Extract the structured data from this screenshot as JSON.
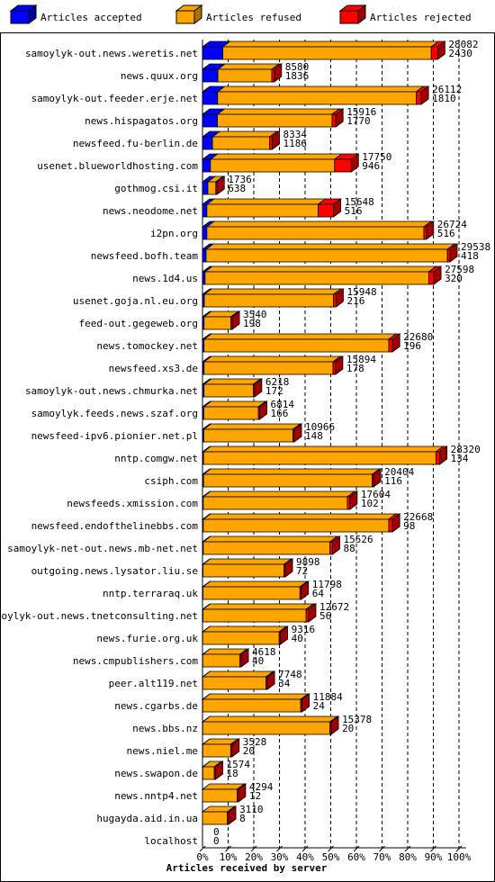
{
  "chart_data": {
    "type": "bar",
    "orientation": "horizontal",
    "stacked": true,
    "x_label": "Articles received by server",
    "categories": [
      "samoylyk-out.news.weretis.net",
      "news.quux.org",
      "samoylyk-out.feeder.erje.net",
      "news.hispagatos.org",
      "newsfeed.fu-berlin.de",
      "usenet.blueworldhosting.com",
      "gothmog.csi.it",
      "news.neodome.net",
      "i2pn.org",
      "newsfeed.bofh.team",
      "news.1d4.us",
      "usenet.goja.nl.eu.org",
      "feed-out.gegeweb.org",
      "news.tomockey.net",
      "newsfeed.xs3.de",
      "samoylyk-out.news.chmurka.net",
      "samoylyk.feeds.news.szaf.org",
      "newsfeed-ipv6.pionier.net.pl",
      "nntp.comgw.net",
      "csiph.com",
      "newsfeeds.xmission.com",
      "newsfeed.endofthelinebbs.com",
      "samoylyk-net-out.news.mb-net.net",
      "outgoing.news.lysator.liu.se",
      "nntp.terraraq.uk",
      "samoylyk-out.news.tnetconsulting.net",
      "news.furie.org.uk",
      "news.cmpublishers.com",
      "peer.alt119.net",
      "news.cgarbs.de",
      "news.bbs.nz",
      "news.niel.me",
      "news.swapon.de",
      "news.nntp4.net",
      "hugayda.aid.in.ua",
      "localhost"
    ],
    "series": [
      {
        "name": "Articles accepted",
        "color": "#0000ff",
        "side": "#0000a0",
        "values": [
          7.9,
          6.0,
          5.9,
          5.8,
          3.9,
          3.1,
          2.1,
          1.7,
          1.7,
          1.4,
          1.0,
          0.7,
          0.6,
          0.6,
          0.6,
          0.6,
          0.5,
          0.5,
          0.4,
          0.4,
          0.3,
          0.3,
          0.3,
          0.2,
          0.2,
          0.2,
          0.1,
          0.1,
          0.1,
          0.1,
          0.1,
          0.1,
          0.1,
          0,
          0,
          0
        ]
      },
      {
        "name": "Articles refused",
        "color": "#ffa500",
        "side": "#b07000",
        "values": [
          81.3,
          21.0,
          77.4,
          44.7,
          22.3,
          48.4,
          3.1,
          43.4,
          84.6,
          94.1,
          87.2,
          50.4,
          10.5,
          72.0,
          50.3,
          19.2,
          21.3,
          34.8,
          90.6,
          65.8,
          56.2,
          72.3,
          49.4,
          31.6,
          37.8,
          40.2,
          29.8,
          14.5,
          24.7,
          38.2,
          49.6,
          10.9,
          4.5,
          13.5,
          9.7,
          0
        ]
      },
      {
        "name": "Articles rejected",
        "color": "#ff0000",
        "side": "#a00000",
        "values": [
          2.5,
          1,
          2,
          1.5,
          1,
          6.5,
          0.5,
          6,
          1,
          1,
          2,
          1,
          0.5,
          1.5,
          1,
          0.5,
          0.5,
          0.5,
          1.5,
          0.5,
          1,
          1.5,
          1,
          0.5,
          0.5,
          1,
          0.5,
          0.5,
          0.5,
          0.5,
          0.5,
          0.5,
          0.5,
          0.5,
          0.5,
          0
        ]
      }
    ],
    "offered": [
      28082,
      8580,
      26112,
      15916,
      8334,
      17750,
      1736,
      15648,
      26724,
      29538,
      27598,
      15948,
      3540,
      22680,
      15894,
      6218,
      6814,
      10966,
      28320,
      20404,
      17604,
      22668,
      15526,
      9898,
      11798,
      12672,
      9316,
      4618,
      7748,
      11884,
      15378,
      3528,
      1574,
      4294,
      3110,
      0
    ],
    "accepted": [
      2430,
      1836,
      1810,
      1770,
      1186,
      946,
      638,
      516,
      516,
      418,
      320,
      216,
      198,
      196,
      178,
      172,
      166,
      148,
      134,
      116,
      102,
      98,
      88,
      72,
      64,
      56,
      40,
      40,
      34,
      24,
      20,
      20,
      18,
      12,
      8,
      0
    ],
    "xlim": [
      0,
      100
    ],
    "xticks": [
      {
        "value": 0,
        "label": "0%"
      },
      {
        "value": 10,
        "label": "10%"
      },
      {
        "value": 20,
        "label": "20%"
      },
      {
        "value": 30,
        "label": "30%"
      },
      {
        "value": 40,
        "label": "40%"
      },
      {
        "value": 50,
        "label": "50%"
      },
      {
        "value": 60,
        "label": "60%"
      },
      {
        "value": 70,
        "label": "70%"
      },
      {
        "value": 80,
        "label": "80%"
      },
      {
        "value": 90,
        "label": "90%"
      },
      {
        "value": 100,
        "label": "100%"
      }
    ],
    "grid": true
  }
}
